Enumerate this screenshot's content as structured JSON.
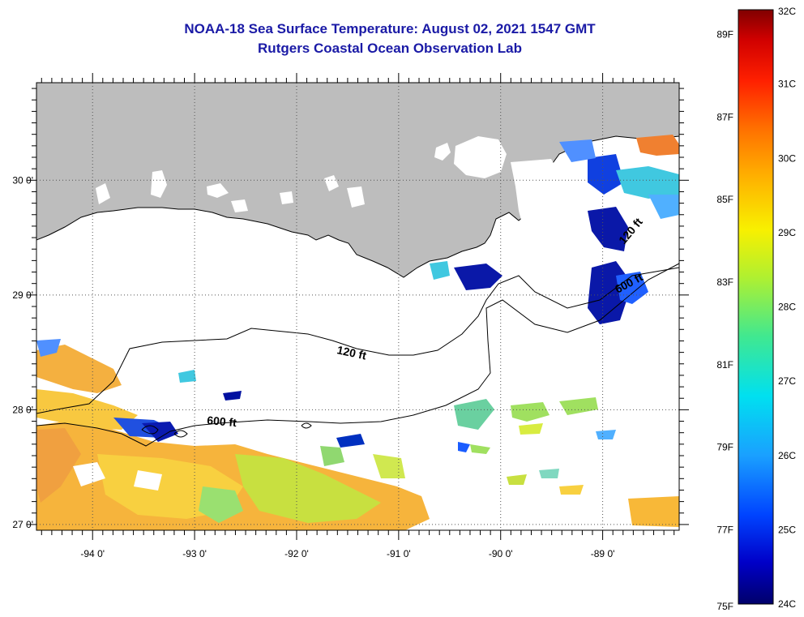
{
  "header": {
    "title_line1": "NOAA-18 Sea Surface Temperature:  August 02, 2021 1547 GMT",
    "title_line2": "Rutgers Coastal Ocean Observation Lab"
  },
  "map": {
    "lon_range": [
      -94.55,
      -88.25
    ],
    "lat_range": [
      26.95,
      30.85
    ],
    "lon_ticks": [
      {
        "value": -94,
        "label": "-94 0'"
      },
      {
        "value": -93,
        "label": "-93 0'"
      },
      {
        "value": -92,
        "label": "-92 0'"
      },
      {
        "value": -91,
        "label": "-91 0'"
      },
      {
        "value": -90,
        "label": "-90 0'"
      },
      {
        "value": -89,
        "label": "-89 0'"
      }
    ],
    "lat_ticks": [
      {
        "value": 30,
        "label": "30 0'"
      },
      {
        "value": 29,
        "label": "29 0'"
      },
      {
        "value": 28,
        "label": "28 0'"
      },
      {
        "value": 27,
        "label": "27 0'"
      }
    ],
    "contour_labels": {
      "c120": "120 ft",
      "c600_west": "600 ft",
      "c600_east": "600 ft",
      "c120_east": "120 ft"
    },
    "land_color": "#bdbdbd",
    "cloud_color": "#ffffff"
  },
  "colorbar": {
    "celsius": [
      "32C",
      "31C",
      "30C",
      "29C",
      "28C",
      "27C",
      "26C",
      "25C",
      "24C"
    ],
    "fahrenheit": [
      "89F",
      "87F",
      "85F",
      "83F",
      "81F",
      "79F",
      "77F",
      "75F"
    ],
    "range_c": [
      24,
      32
    ]
  }
}
